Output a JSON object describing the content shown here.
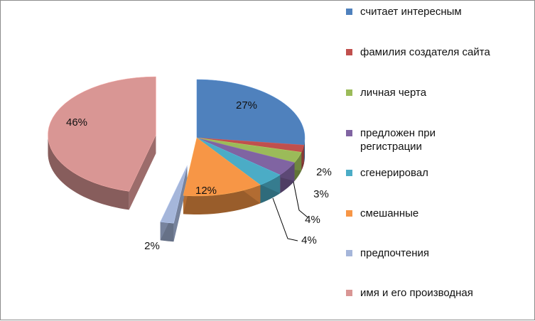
{
  "chart_data": {
    "type": "pie",
    "title": "",
    "categories": [
      "считает интересным",
      "фамилия создателя сайта",
      "личная черта",
      "предложен при регистрации",
      "сгенерировал",
      "смешанные",
      "предпочтения",
      "имя и его производная"
    ],
    "values": [
      27,
      2,
      3,
      4,
      4,
      12,
      2,
      46
    ],
    "data_labels": [
      "27%",
      "2%",
      "3%",
      "4%",
      "4%",
      "12%",
      "2%",
      "46%"
    ],
    "colors": [
      "#4F81BD",
      "#C0504D",
      "#9BBB59",
      "#8064A2",
      "#4BACC6",
      "#F79646",
      "#A5B6DA",
      "#D99694"
    ],
    "exploded": true,
    "legend": "right",
    "grid": false
  }
}
